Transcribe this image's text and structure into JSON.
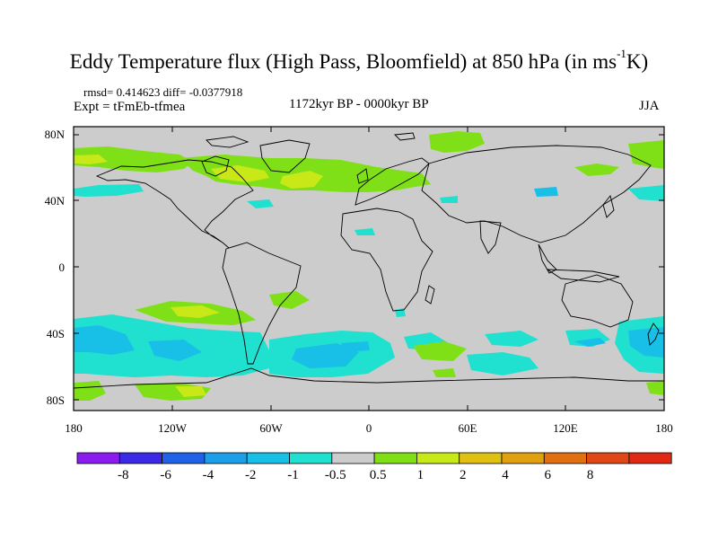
{
  "title": {
    "main": "Eddy Temperature flux (High Pass, Bloomfield) at 850 hPa (in ms",
    "sup": "-1",
    "end": "K)"
  },
  "subtitle": {
    "rmsd": "rmsd= 0.414623 diff= -0.0377918",
    "expt": "Expt = tFmEb-tfmea",
    "period": "1172kyr BP - 0000kyr BP",
    "season": "JJA"
  },
  "axes": {
    "lat_labels": [
      "80N",
      "40N",
      "0",
      "40S",
      "80S"
    ],
    "lon_labels": [
      "180",
      "120W",
      "60W",
      "0",
      "60E",
      "120E",
      "180"
    ]
  },
  "colorbar": {
    "colors": [
      "#8a1cf0",
      "#3a2ae6",
      "#1f62e8",
      "#1c9ee8",
      "#18c0e8",
      "#20e0d0",
      "#cccccc",
      "#80e018",
      "#c8e818",
      "#e0c010",
      "#e0a010",
      "#e07010",
      "#e04818",
      "#e02814"
    ],
    "labels": [
      "-8",
      "-6",
      "-4",
      "-2",
      "-1",
      "-0.5",
      "0.5",
      "1",
      "2",
      "4",
      "6",
      "8"
    ]
  }
}
